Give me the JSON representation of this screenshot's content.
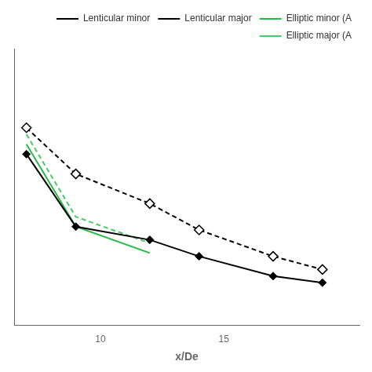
{
  "chart_data": {
    "type": "line",
    "xlabel": "x/De",
    "series": [
      {
        "name": "Lenticular minor",
        "color": "#000000",
        "marker": "diamond",
        "line_style": "solid",
        "x": [
          7,
          9,
          12,
          14,
          17,
          19
        ],
        "values": [
          0.36,
          0.25,
          0.23,
          0.205,
          0.175,
          0.165
        ]
      },
      {
        "name": "Lenticular major",
        "color": "#000000",
        "marker": "open_diamond",
        "line_style": "dashed",
        "x": [
          7,
          9,
          12,
          14,
          17,
          19
        ],
        "values": [
          0.4,
          0.33,
          0.285,
          0.245,
          0.205,
          0.185
        ]
      },
      {
        "name": "Elliptic minor (A",
        "color": "#22bb44",
        "marker": "none",
        "line_style": "solid",
        "x": [
          7,
          9,
          12
        ],
        "values": [
          0.375,
          0.25,
          0.21
        ]
      },
      {
        "name": "Elliptic major (A",
        "color": "#44cc66",
        "marker": "none",
        "line_style": "dashed",
        "x": [
          7,
          9,
          12
        ],
        "values": [
          0.39,
          0.265,
          0.225
        ]
      }
    ],
    "xlim": [
      6.5,
      20.5
    ],
    "xticks": [
      10,
      15
    ],
    "ylim": [
      0.1,
      0.52
    ],
    "tick_labels": "x",
    "grid": false,
    "legend": "upper right"
  }
}
